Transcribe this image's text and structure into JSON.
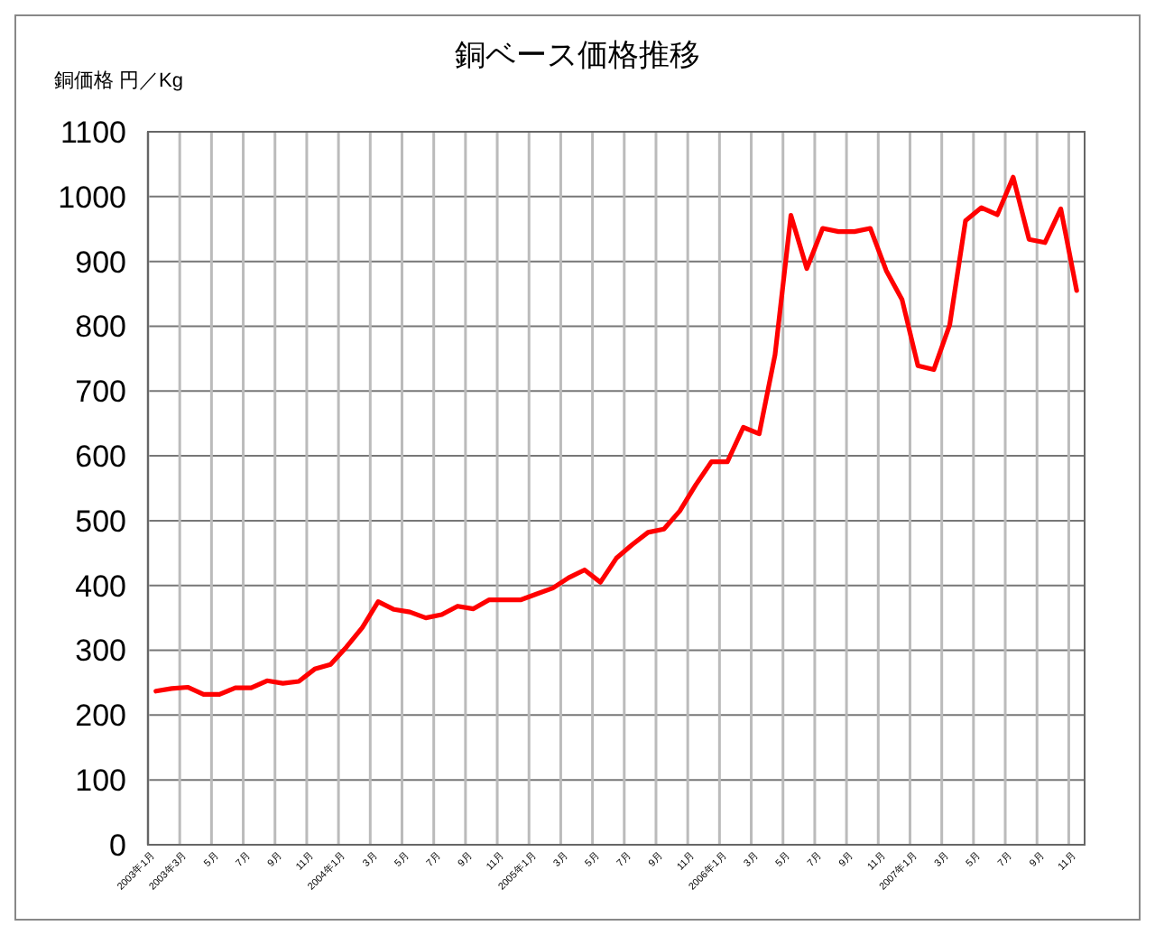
{
  "chart_data": {
    "type": "line",
    "title": "銅ベース価格推移",
    "ylabel": "銅価格 円／Kg",
    "categories": [
      "2003年1月",
      null,
      "2003年3月",
      null,
      "5月",
      null,
      "7月",
      null,
      "9月",
      null,
      "11月",
      null,
      "2004年1月",
      null,
      "3月",
      null,
      "5月",
      null,
      "7月",
      null,
      "9月",
      null,
      "11月",
      null,
      "2005年1月",
      null,
      "3月",
      null,
      "5月",
      null,
      "7月",
      null,
      "9月",
      null,
      "11月",
      null,
      "2006年1月",
      null,
      "3月",
      null,
      "5月",
      null,
      "7月",
      null,
      "9月",
      null,
      "11月",
      null,
      "2007年1月",
      null,
      "3月",
      null,
      "5月",
      null,
      "7月",
      null,
      "9月",
      null,
      "11月"
    ],
    "series": [
      {
        "color": "#ff0000",
        "values": [
          237,
          241,
          243,
          232,
          232,
          242,
          242,
          253,
          249,
          252,
          271,
          278,
          305,
          335,
          375,
          363,
          359,
          350,
          355,
          368,
          364,
          378,
          378,
          378,
          387,
          396,
          412,
          424,
          405,
          442,
          463,
          482,
          487,
          515,
          555,
          591,
          591,
          644,
          634,
          756,
          971,
          889,
          951,
          946,
          946,
          951,
          886,
          841,
          739,
          733,
          802,
          963,
          983,
          972,
          1030,
          934,
          929,
          981,
          855
        ]
      }
    ],
    "ylim": [
      0,
      1100
    ],
    "yticks": [
      0,
      100,
      200,
      300,
      400,
      500,
      600,
      700,
      800,
      900,
      1000,
      1100
    ],
    "grid": true,
    "marker": "none",
    "line_style": "solid"
  }
}
